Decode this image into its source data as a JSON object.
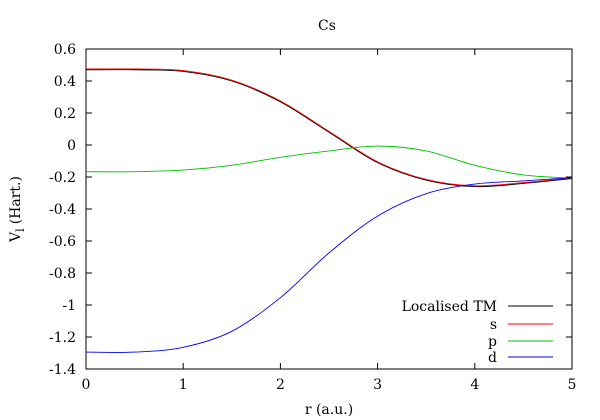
{
  "chart_data": {
    "type": "line",
    "title": "Cs",
    "xlabel": "r (a.u.)",
    "ylabel_main": "V",
    "ylabel_sub": "l",
    "ylabel_unit": "(Hart.)",
    "xlim": [
      0,
      5
    ],
    "ylim": [
      -1.4,
      0.6
    ],
    "x_ticks": [
      0,
      1,
      2,
      3,
      4,
      5
    ],
    "x_tick_labels": [
      "0",
      "1",
      "2",
      "3",
      "4",
      "5"
    ],
    "y_ticks": [
      0.6,
      0.4,
      0.2,
      0,
      -0.2,
      -0.4,
      -0.6,
      -0.8,
      -1,
      -1.2,
      -1.4
    ],
    "y_tick_labels": [
      "0.6",
      "0.4",
      "0.2",
      "0",
      "-0.2",
      "-0.4",
      "-0.6",
      "-0.8",
      "-1",
      "-1.2",
      "-1.4"
    ],
    "grid": false,
    "legend_position": "bottom-right",
    "x": [
      0,
      0.5,
      1.0,
      1.5,
      2.0,
      2.5,
      3.0,
      3.5,
      4.0,
      4.5,
      5.0
    ],
    "series": [
      {
        "name": "Localised TM",
        "color": "#000000",
        "values": [
          0.47,
          0.47,
          0.46,
          0.4,
          0.27,
          0.08,
          -0.11,
          -0.22,
          -0.26,
          -0.24,
          -0.21
        ]
      },
      {
        "name": "s",
        "color": "#ff0000",
        "values": [
          0.47,
          0.47,
          0.46,
          0.4,
          0.27,
          0.08,
          -0.11,
          -0.22,
          -0.26,
          -0.24,
          -0.21
        ]
      },
      {
        "name": "p",
        "color": "#00c000",
        "values": [
          -0.17,
          -0.17,
          -0.16,
          -0.13,
          -0.08,
          -0.04,
          -0.01,
          -0.04,
          -0.13,
          -0.19,
          -0.21
        ]
      },
      {
        "name": "d",
        "color": "#0000ff",
        "values": [
          -1.3,
          -1.3,
          -1.27,
          -1.17,
          -0.96,
          -0.68,
          -0.45,
          -0.31,
          -0.25,
          -0.23,
          -0.21
        ]
      }
    ]
  }
}
